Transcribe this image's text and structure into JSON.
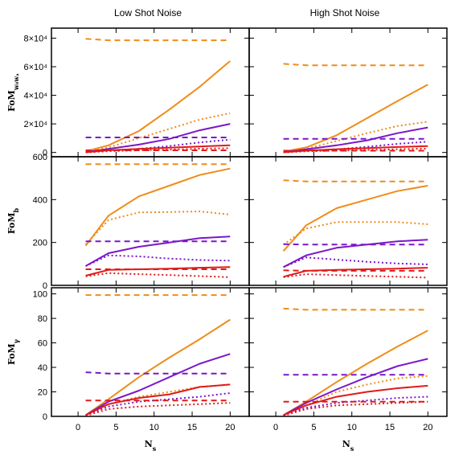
{
  "chart_data": {
    "type": "line",
    "column_titles": [
      "Low Shot Noise",
      "High Shot Noise"
    ],
    "xlabel": {
      "main": "N",
      "sub": "s"
    },
    "xticks": [
      0,
      5,
      10,
      15,
      20
    ],
    "xlim": [
      -3.5,
      22.5
    ],
    "x": [
      1,
      4,
      8,
      12,
      16,
      20
    ],
    "line_styles": {
      "solid": "none",
      "dotted": "2,3",
      "dashed": "7,5"
    },
    "rows": [
      {
        "ylabel": {
          "main": "FoM",
          "sub": "w₀wₐ"
        },
        "ylim": [
          -3000,
          87000
        ],
        "yticks": [
          {
            "value": 0,
            "label": "0"
          },
          {
            "value": 20000,
            "label": "2×10⁴"
          },
          {
            "value": 40000,
            "label": "4×10⁴"
          },
          {
            "value": 60000,
            "label": "6×10⁴"
          },
          {
            "value": 80000,
            "label": "8×10⁴"
          }
        ]
      },
      {
        "ylabel": {
          "main": "FoM",
          "sub": "b"
        },
        "ylim": [
          0,
          600
        ],
        "yticks": [
          {
            "value": 0,
            "label": "0"
          },
          {
            "value": 200,
            "label": "200"
          },
          {
            "value": 400,
            "label": "400"
          },
          {
            "value": 600,
            "label": "600"
          }
        ]
      },
      {
        "ylabel": {
          "main": "FoM",
          "sub": "γ"
        },
        "ylim": [
          0,
          105
        ],
        "yticks": [
          {
            "value": 0,
            "label": "0"
          },
          {
            "value": 20,
            "label": "20"
          },
          {
            "value": 40,
            "label": "40"
          },
          {
            "value": 60,
            "label": "60"
          },
          {
            "value": 80,
            "label": "80"
          },
          {
            "value": 100,
            "label": "100"
          }
        ]
      }
    ],
    "panels": [
      {
        "row": 0,
        "col": 0,
        "title": "Low Shot Noise",
        "series": [
          {
            "color": "#f08c19",
            "style": "dashed",
            "values": [
              79500,
              78500,
              78500,
              78500,
              78500,
              78500
            ]
          },
          {
            "color": "#f08c19",
            "style": "solid",
            "values": [
              800,
              5000,
              15000,
              30000,
              46000,
              64000
            ]
          },
          {
            "color": "#f08c19",
            "style": "dotted",
            "values": [
              600,
              3500,
              10000,
              16500,
              23000,
              27500
            ]
          },
          {
            "color": "#7b17c8",
            "style": "dashed",
            "values": [
              10500,
              10500,
              10500,
              10500,
              10500,
              10500
            ]
          },
          {
            "color": "#7b17c8",
            "style": "solid",
            "values": [
              200,
              2500,
              5500,
              9500,
              15500,
              20000
            ]
          },
          {
            "color": "#7b17c8",
            "style": "dotted",
            "values": [
              100,
              1200,
              2500,
              4500,
              7000,
              9000
            ]
          },
          {
            "color": "#e01a1a",
            "style": "dashed",
            "values": [
              1500,
              1500,
              1500,
              1500,
              1500,
              1500
            ]
          },
          {
            "color": "#e01a1a",
            "style": "solid",
            "values": [
              100,
              1500,
              2500,
              3300,
              4200,
              5000
            ]
          },
          {
            "color": "#e01a1a",
            "style": "dotted",
            "values": [
              50,
              900,
              1500,
              2000,
              2600,
              3000
            ]
          }
        ]
      },
      {
        "row": 0,
        "col": 1,
        "title": "High Shot Noise",
        "series": [
          {
            "color": "#f08c19",
            "style": "dashed",
            "values": [
              62000,
              61000,
              61000,
              61000,
              61000,
              61000
            ]
          },
          {
            "color": "#f08c19",
            "style": "solid",
            "values": [
              600,
              3500,
              12000,
              24000,
              36000,
              47500
            ]
          },
          {
            "color": "#f08c19",
            "style": "dotted",
            "values": [
              400,
              2500,
              8000,
              13500,
              18500,
              21500
            ]
          },
          {
            "color": "#7b17c8",
            "style": "dashed",
            "values": [
              9500,
              9500,
              9500,
              9500,
              9500,
              9500
            ]
          },
          {
            "color": "#7b17c8",
            "style": "solid",
            "values": [
              200,
              2200,
              5000,
              8500,
              13500,
              17500
            ]
          },
          {
            "color": "#7b17c8",
            "style": "dotted",
            "values": [
              100,
              1000,
              2200,
              4000,
              6000,
              7500
            ]
          },
          {
            "color": "#e01a1a",
            "style": "dashed",
            "values": [
              1200,
              1200,
              1200,
              1200,
              1200,
              1200
            ]
          },
          {
            "color": "#e01a1a",
            "style": "solid",
            "values": [
              100,
              1300,
              2300,
              3000,
              3800,
              4500
            ]
          },
          {
            "color": "#e01a1a",
            "style": "dotted",
            "values": [
              50,
              800,
              1300,
              1800,
              2300,
              2700
            ]
          }
        ]
      },
      {
        "row": 1,
        "col": 0,
        "title": "Low Shot Noise",
        "series": [
          {
            "color": "#f08c19",
            "style": "dashed",
            "values": [
              565,
              565,
              565,
              565,
              565,
              565
            ]
          },
          {
            "color": "#f08c19",
            "style": "solid",
            "values": [
              185,
              325,
              415,
              465,
              515,
              545
            ]
          },
          {
            "color": "#f08c19",
            "style": "dotted",
            "values": [
              190,
              305,
              340,
              342,
              345,
              330
            ]
          },
          {
            "color": "#7b17c8",
            "style": "dashed",
            "values": [
              205,
              205,
              205,
              205,
              205,
              205
            ]
          },
          {
            "color": "#7b17c8",
            "style": "solid",
            "values": [
              90,
              150,
              180,
              200,
              220,
              228
            ]
          },
          {
            "color": "#7b17c8",
            "style": "dotted",
            "values": [
              90,
              140,
              135,
              125,
              118,
              115
            ]
          },
          {
            "color": "#e01a1a",
            "style": "dashed",
            "values": [
              75,
              75,
              75,
              75,
              75,
              75
            ]
          },
          {
            "color": "#e01a1a",
            "style": "solid",
            "values": [
              45,
              72,
              75,
              78,
              82,
              85
            ]
          },
          {
            "color": "#e01a1a",
            "style": "dotted",
            "values": [
              42,
              57,
              52,
              48,
              43,
              38
            ]
          }
        ]
      },
      {
        "row": 1,
        "col": 1,
        "title": "High Shot Noise",
        "series": [
          {
            "color": "#f08c19",
            "style": "dashed",
            "values": [
              490,
              485,
              485,
              485,
              485,
              485
            ]
          },
          {
            "color": "#f08c19",
            "style": "solid",
            "values": [
              160,
              280,
              360,
              400,
              440,
              465
            ]
          },
          {
            "color": "#f08c19",
            "style": "dotted",
            "values": [
              190,
              265,
              295,
              295,
              295,
              285
            ]
          },
          {
            "color": "#7b17c8",
            "style": "dashed",
            "values": [
              192,
              190,
              190,
              190,
              190,
              190
            ]
          },
          {
            "color": "#7b17c8",
            "style": "solid",
            "values": [
              85,
              140,
              175,
              190,
              205,
              213
            ]
          },
          {
            "color": "#7b17c8",
            "style": "dotted",
            "values": [
              85,
              130,
              120,
              110,
              102,
              98
            ]
          },
          {
            "color": "#e01a1a",
            "style": "dashed",
            "values": [
              70,
              68,
              68,
              68,
              68,
              68
            ]
          },
          {
            "color": "#e01a1a",
            "style": "solid",
            "values": [
              40,
              68,
              72,
              75,
              78,
              82
            ]
          },
          {
            "color": "#e01a1a",
            "style": "dotted",
            "values": [
              38,
              52,
              48,
              44,
              40,
              36
            ]
          }
        ]
      },
      {
        "row": 2,
        "col": 0,
        "title": "Low Shot Noise",
        "series": [
          {
            "color": "#f08c19",
            "style": "dashed",
            "values": [
              99,
              99,
              99,
              99,
              99,
              99
            ]
          },
          {
            "color": "#f08c19",
            "style": "solid",
            "values": [
              1,
              14,
              32,
              48,
              63,
              79
            ]
          },
          {
            "color": "#f08c19",
            "style": "dotted",
            "values": [
              1,
              10,
              16,
              20,
              24,
              26
            ]
          },
          {
            "color": "#7b17c8",
            "style": "dashed",
            "values": [
              36,
              35,
              35,
              35,
              35,
              35
            ]
          },
          {
            "color": "#7b17c8",
            "style": "solid",
            "values": [
              1,
              12,
              21,
              32,
              43,
              51
            ]
          },
          {
            "color": "#7b17c8",
            "style": "dotted",
            "values": [
              1,
              8,
              12,
              14,
              16,
              19
            ]
          },
          {
            "color": "#e01a1a",
            "style": "dashed",
            "values": [
              13,
              13,
              13,
              13,
              13,
              13
            ]
          },
          {
            "color": "#e01a1a",
            "style": "solid",
            "values": [
              1,
              10,
              15,
              18,
              24,
              26
            ]
          },
          {
            "color": "#e01a1a",
            "style": "dotted",
            "values": [
              0.5,
              6,
              8,
              9,
              10,
              11
            ]
          }
        ]
      },
      {
        "row": 2,
        "col": 1,
        "title": "High Shot Noise",
        "series": [
          {
            "color": "#f08c19",
            "style": "dashed",
            "values": [
              88,
              87,
              87,
              87,
              87,
              87
            ]
          },
          {
            "color": "#f08c19",
            "style": "solid",
            "values": [
              1,
              12,
              28,
              43,
              57,
              70
            ]
          },
          {
            "color": "#f08c19",
            "style": "dotted",
            "values": [
              1,
              9,
              20,
              26,
              31,
              33
            ]
          },
          {
            "color": "#7b17c8",
            "style": "dashed",
            "values": [
              34,
              34,
              34,
              34,
              34,
              34
            ]
          },
          {
            "color": "#7b17c8",
            "style": "solid",
            "values": [
              1,
              11,
              22,
              32,
              41,
              47
            ]
          },
          {
            "color": "#7b17c8",
            "style": "dotted",
            "values": [
              1,
              7,
              11,
              13,
              15,
              16
            ]
          },
          {
            "color": "#e01a1a",
            "style": "dashed",
            "values": [
              12,
              12,
              12,
              12,
              12,
              12
            ]
          },
          {
            "color": "#e01a1a",
            "style": "solid",
            "values": [
              1,
              9,
              16,
              20,
              23,
              25
            ]
          },
          {
            "color": "#e01a1a",
            "style": "dotted",
            "values": [
              0.5,
              6,
              9,
              10,
              11,
              12
            ]
          }
        ]
      }
    ]
  }
}
